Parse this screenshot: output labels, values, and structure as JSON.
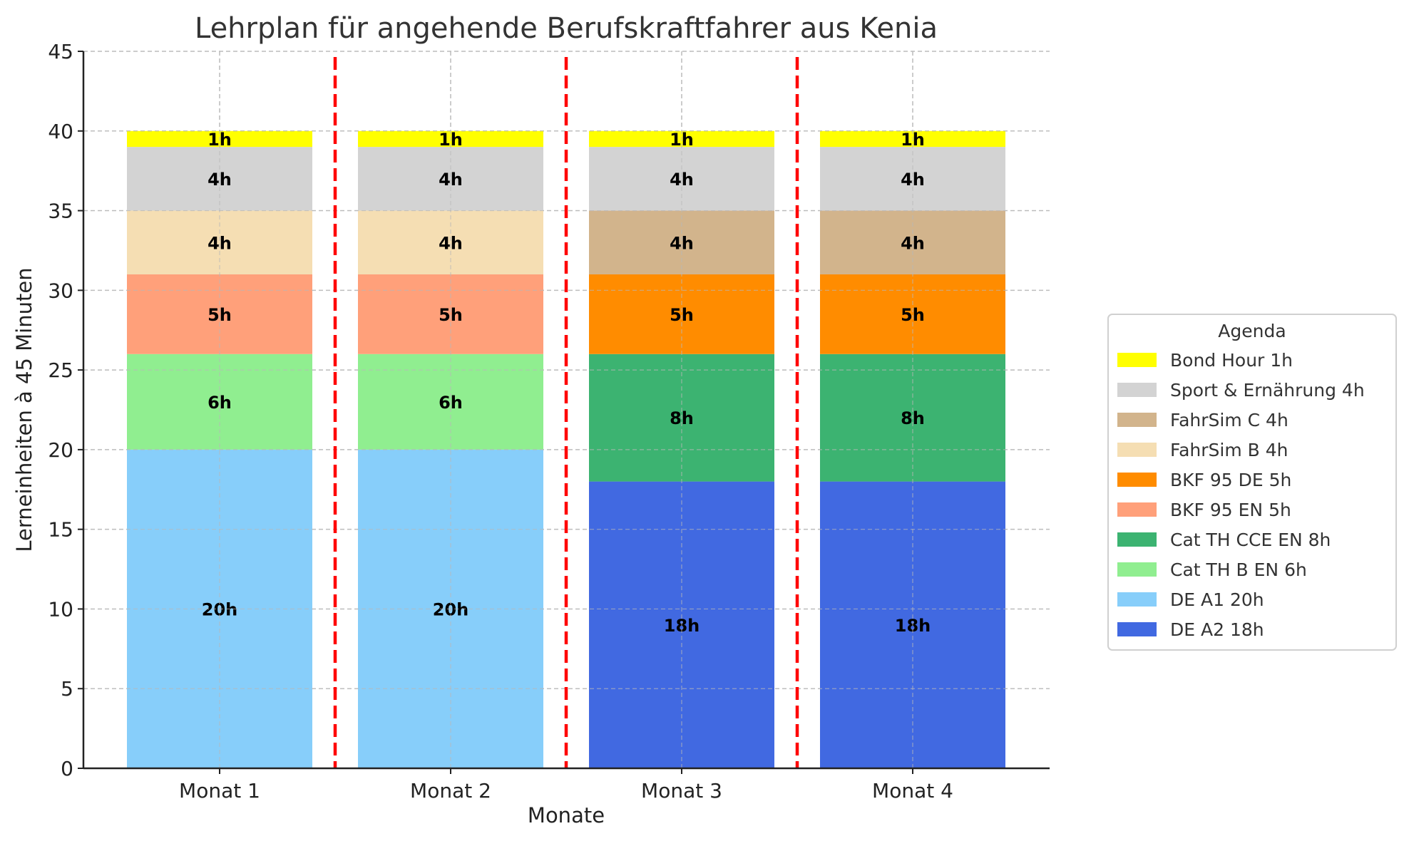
{
  "chart_data": {
    "type": "bar",
    "stacked": true,
    "title": "Lehrplan für angehende Berufskraftfahrer aus Kenia",
    "xlabel": "Monate",
    "ylabel": "Lerneinheiten à 45 Minuten",
    "ylim": [
      0,
      45
    ],
    "yticks": [
      0,
      5,
      10,
      15,
      20,
      25,
      30,
      35,
      40,
      45
    ],
    "grid": true,
    "categories": [
      "Monat 1",
      "Monat 2",
      "Monat 3",
      "Monat 4"
    ],
    "separators": {
      "between_categories": true,
      "color": "#ff0000",
      "style": "dashed"
    },
    "series": [
      {
        "name": "DE A2 18h",
        "color": "#4169e1",
        "values": [
          0,
          0,
          18,
          18
        ]
      },
      {
        "name": "DE A1 20h",
        "color": "#87cefa",
        "values": [
          20,
          20,
          0,
          0
        ]
      },
      {
        "name": "Cat TH B EN 6h",
        "color": "#90ee90",
        "values": [
          6,
          6,
          0,
          0
        ]
      },
      {
        "name": "Cat TH CCE EN 8h",
        "color": "#3cb371",
        "values": [
          0,
          0,
          8,
          8
        ]
      },
      {
        "name": "BKF 95 EN 5h",
        "color": "#ffa07a",
        "values": [
          5,
          5,
          0,
          0
        ]
      },
      {
        "name": "BKF 95 DE 5h",
        "color": "#ff8c00",
        "values": [
          0,
          0,
          5,
          5
        ]
      },
      {
        "name": "FahrSim B 4h",
        "color": "#f5deb3",
        "values": [
          4,
          4,
          0,
          0
        ]
      },
      {
        "name": "FahrSim C 4h",
        "color": "#d2b48c",
        "values": [
          0,
          0,
          4,
          4
        ]
      },
      {
        "name": "Sport & Ernährung 4h",
        "color": "#d3d3d3",
        "values": [
          4,
          4,
          4,
          4
        ]
      },
      {
        "name": "Bond Hour 1h",
        "color": "#ffff00",
        "values": [
          1,
          1,
          1,
          1
        ]
      }
    ],
    "stacks": [
      [
        {
          "series": "DE A1 20h",
          "value": 20,
          "label": "20h"
        },
        {
          "series": "Cat TH B EN 6h",
          "value": 6,
          "label": "6h"
        },
        {
          "series": "BKF 95 EN 5h",
          "value": 5,
          "label": "5h"
        },
        {
          "series": "FahrSim B 4h",
          "value": 4,
          "label": "4h"
        },
        {
          "series": "Sport & Ernährung 4h",
          "value": 4,
          "label": "4h"
        },
        {
          "series": "Bond Hour 1h",
          "value": 1,
          "label": "1h"
        }
      ],
      [
        {
          "series": "DE A1 20h",
          "value": 20,
          "label": "20h"
        },
        {
          "series": "Cat TH B EN 6h",
          "value": 6,
          "label": "6h"
        },
        {
          "series": "BKF 95 EN 5h",
          "value": 5,
          "label": "5h"
        },
        {
          "series": "FahrSim B 4h",
          "value": 4,
          "label": "4h"
        },
        {
          "series": "Sport & Ernährung 4h",
          "value": 4,
          "label": "4h"
        },
        {
          "series": "Bond Hour 1h",
          "value": 1,
          "label": "1h"
        }
      ],
      [
        {
          "series": "DE A2 18h",
          "value": 18,
          "label": "18h"
        },
        {
          "series": "Cat TH CCE EN 8h",
          "value": 8,
          "label": "8h"
        },
        {
          "series": "BKF 95 DE 5h",
          "value": 5,
          "label": "5h"
        },
        {
          "series": "FahrSim C 4h",
          "value": 4,
          "label": "4h"
        },
        {
          "series": "Sport & Ernährung 4h",
          "value": 4,
          "label": "4h"
        },
        {
          "series": "Bond Hour 1h",
          "value": 1,
          "label": "1h"
        }
      ],
      [
        {
          "series": "DE A2 18h",
          "value": 18,
          "label": "18h"
        },
        {
          "series": "Cat TH CCE EN 8h",
          "value": 8,
          "label": "8h"
        },
        {
          "series": "BKF 95 DE 5h",
          "value": 5,
          "label": "5h"
        },
        {
          "series": "FahrSim C 4h",
          "value": 4,
          "label": "4h"
        },
        {
          "series": "Sport & Ernährung 4h",
          "value": 4,
          "label": "4h"
        },
        {
          "series": "Bond Hour 1h",
          "value": 1,
          "label": "1h"
        }
      ]
    ],
    "legend": {
      "title": "Agenda",
      "placement": "center-right, outside plot",
      "entries": [
        {
          "label": "Bond Hour 1h",
          "color": "#ffff00"
        },
        {
          "label": "Sport & Ernährung 4h",
          "color": "#d3d3d3"
        },
        {
          "label": "FahrSim C 4h",
          "color": "#d2b48c"
        },
        {
          "label": "FahrSim B 4h",
          "color": "#f5deb3"
        },
        {
          "label": "BKF 95 DE 5h",
          "color": "#ff8c00"
        },
        {
          "label": "BKF 95 EN 5h",
          "color": "#ffa07a"
        },
        {
          "label": "Cat TH CCE EN 8h",
          "color": "#3cb371"
        },
        {
          "label": "Cat TH B EN 6h",
          "color": "#90ee90"
        },
        {
          "label": "DE A1 20h",
          "color": "#87cefa"
        },
        {
          "label": "DE A2 18h",
          "color": "#4169e1"
        }
      ]
    }
  }
}
